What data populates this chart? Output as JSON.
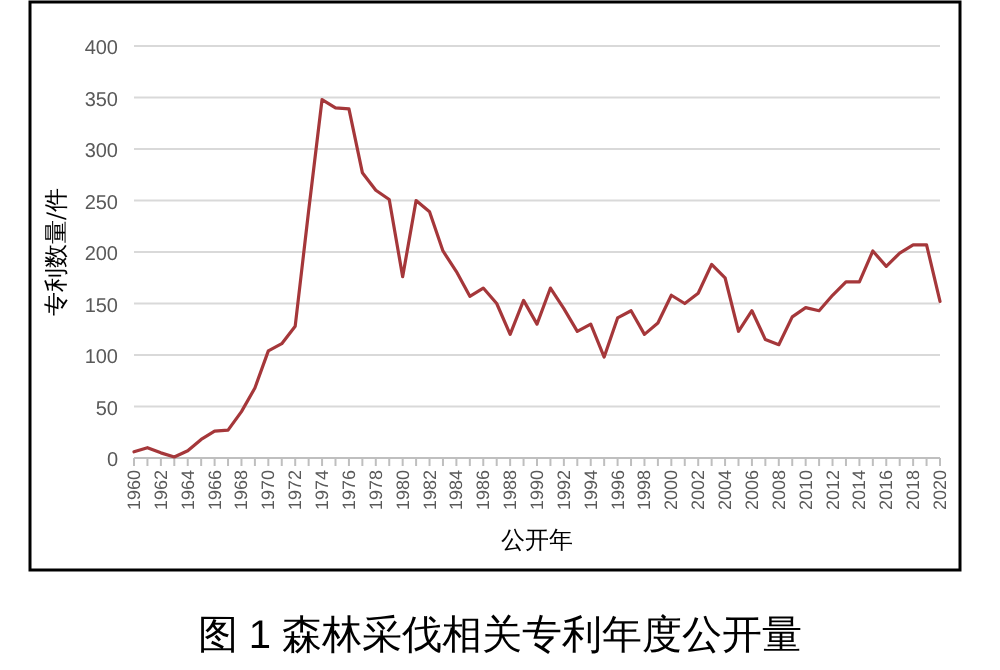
{
  "chart_data": {
    "type": "line",
    "title": "图 1 森林采伐相关专利年度公开量",
    "xlabel": "公开年",
    "ylabel": "专利数量/件",
    "x": [
      1960,
      1961,
      1962,
      1963,
      1964,
      1965,
      1966,
      1967,
      1968,
      1969,
      1970,
      1971,
      1972,
      1973,
      1974,
      1975,
      1976,
      1977,
      1978,
      1979,
      1980,
      1981,
      1982,
      1983,
      1984,
      1985,
      1986,
      1987,
      1988,
      1989,
      1990,
      1991,
      1992,
      1993,
      1994,
      1995,
      1996,
      1997,
      1998,
      1999,
      2000,
      2001,
      2002,
      2003,
      2004,
      2005,
      2006,
      2007,
      2008,
      2009,
      2010,
      2011,
      2012,
      2013,
      2014,
      2015,
      2016,
      2017,
      2018,
      2019,
      2020
    ],
    "series": [
      {
        "color": "#a5373a",
        "values": [
          6,
          10,
          5,
          1,
          7,
          18,
          26,
          27,
          45,
          68,
          104,
          111,
          128,
          240,
          348,
          340,
          339,
          277,
          260,
          251,
          176,
          250,
          239,
          201,
          181,
          157,
          165,
          150,
          120,
          153,
          130,
          165,
          145,
          123,
          130,
          98,
          136,
          143,
          120,
          131,
          158,
          150,
          160,
          188,
          175,
          123,
          143,
          115,
          110,
          137,
          146,
          143,
          158,
          171,
          171,
          201,
          186,
          199,
          207,
          207,
          152
        ]
      }
    ],
    "xlim": [
      1960,
      2020
    ],
    "xticks": [
      1960,
      1962,
      1964,
      1966,
      1968,
      1970,
      1972,
      1974,
      1976,
      1978,
      1980,
      1982,
      1984,
      1986,
      1988,
      1990,
      1992,
      1994,
      1996,
      1998,
      2000,
      2002,
      2004,
      2006,
      2008,
      2010,
      2012,
      2014,
      2016,
      2018,
      2020
    ],
    "ylim": [
      0,
      400
    ],
    "yticks": [
      0,
      50,
      100,
      150,
      200,
      250,
      300,
      350,
      400
    ],
    "grid": "y",
    "marker": "none",
    "line_style": "solid"
  }
}
